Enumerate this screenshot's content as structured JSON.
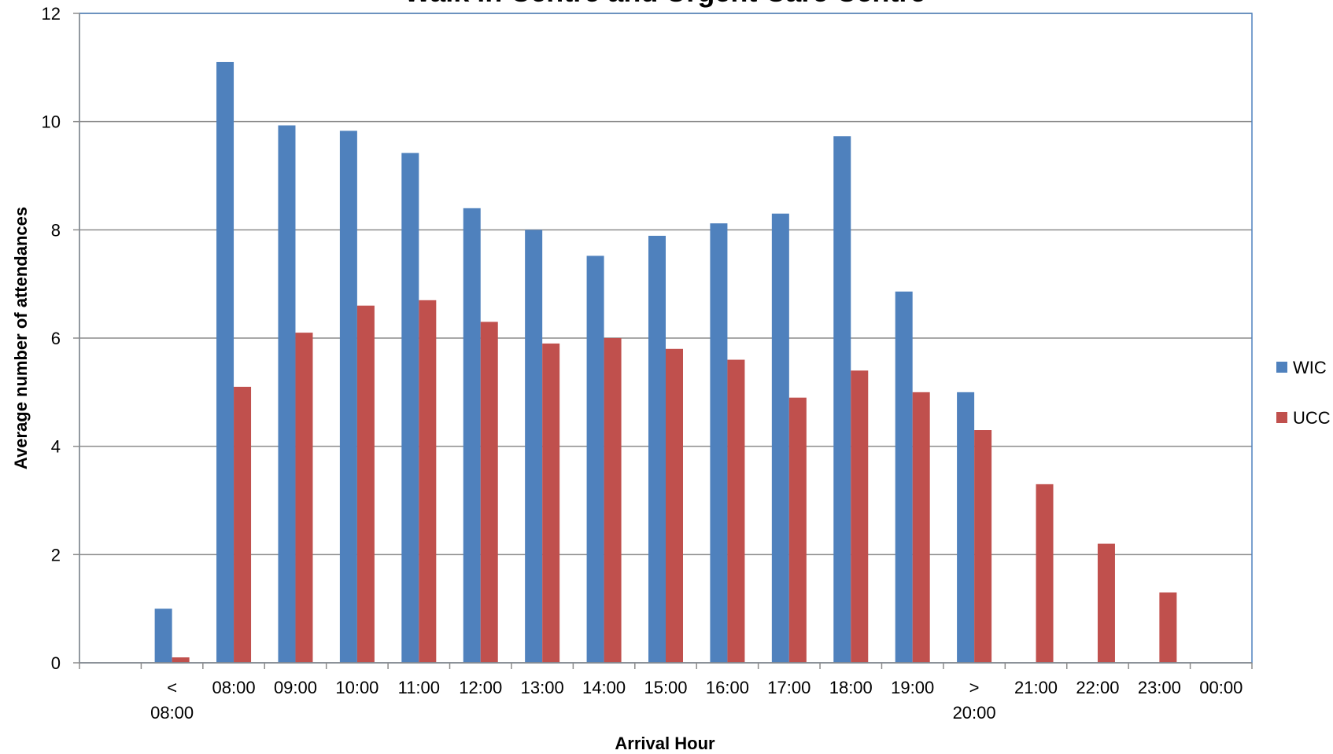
{
  "chart_data": {
    "type": "bar",
    "title": "Walk in Centre and Urgent Care Centre",
    "xlabel": "Arrival Hour",
    "ylabel": "Average number of attendances",
    "ylim": [
      0,
      12
    ],
    "yticks": [
      0,
      2,
      4,
      6,
      8,
      10,
      12
    ],
    "grid": true,
    "legend_position": "right",
    "categories": [
      "",
      "< 08:00",
      "08:00",
      "09:00",
      "10:00",
      "11:00",
      "12:00",
      "13:00",
      "14:00",
      "15:00",
      "16:00",
      "17:00",
      "18:00",
      "19:00",
      "> 20:00",
      "21:00",
      "22:00",
      "23:00",
      "00:00"
    ],
    "series": [
      {
        "name": "WIC",
        "color": "#4F81BD",
        "values": [
          null,
          1.0,
          11.1,
          9.93,
          9.83,
          9.42,
          8.4,
          8.0,
          7.52,
          7.89,
          8.12,
          8.3,
          9.73,
          6.86,
          5.0,
          null,
          null,
          null,
          null
        ]
      },
      {
        "name": "UCC",
        "color": "#C0504D",
        "values": [
          null,
          0.1,
          5.1,
          6.1,
          6.6,
          6.7,
          6.3,
          5.9,
          6.0,
          5.8,
          5.6,
          4.9,
          5.4,
          5.0,
          4.3,
          3.3,
          2.2,
          1.3,
          null
        ]
      }
    ]
  }
}
